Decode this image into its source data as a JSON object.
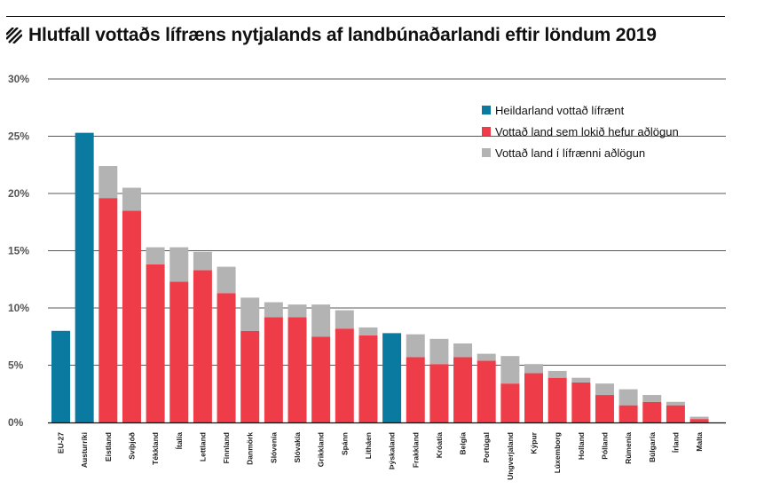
{
  "chart_data": {
    "type": "bar",
    "stacked": true,
    "title": "Hlutfall vottaðs lífræns nytjalands af landbúnaðarlandi eftir löndum 2019",
    "xlabel": "",
    "ylabel": "",
    "ylim": [
      0,
      30
    ],
    "yticks": [
      0,
      5,
      10,
      15,
      20,
      25,
      30
    ],
    "ytick_labels": [
      "0%",
      "5%",
      "10%",
      "15%",
      "20%",
      "25%",
      "30%"
    ],
    "grid": true,
    "legend_position": "top-right",
    "categories": [
      "EU-27",
      "Austurríki",
      "Eistland",
      "Svíþjóð",
      "Tékkland",
      "Ítalía",
      "Lettland",
      "Finnland",
      "Danmörk",
      "Slóvenía",
      "Slóvakía",
      "Grikkland",
      "Spánn",
      "Litháen",
      "Þýskaland",
      "Frakkland",
      "Króatía",
      "Belgía",
      "Portúgal",
      "Ungverjaland",
      "Kýpur",
      "Lúxemborg",
      "Holland",
      "Pólland",
      "Rúmenía",
      "Búlgaría",
      "Írland",
      "Malta"
    ],
    "series": [
      {
        "name": "Heildarland vottað lífrænt",
        "color": "#0a7aa0",
        "values": [
          8.0,
          25.3,
          0,
          0,
          0,
          0,
          0,
          0,
          0,
          0,
          0,
          0,
          0,
          0,
          7.8,
          0,
          0,
          0,
          0,
          0,
          0,
          0,
          0,
          0,
          0,
          0,
          0,
          0
        ]
      },
      {
        "name": "Vottað land sem lokið hefur aðlögun",
        "color": "#ee3d48",
        "values": [
          0,
          0,
          19.6,
          18.5,
          13.8,
          12.3,
          13.3,
          11.3,
          8.0,
          9.2,
          9.2,
          7.5,
          8.2,
          7.6,
          0,
          5.7,
          5.1,
          5.7,
          5.4,
          3.4,
          4.3,
          3.9,
          3.5,
          2.4,
          1.5,
          1.8,
          1.5,
          0.3
        ]
      },
      {
        "name": "Vottað land í lífrænni aðlögun",
        "color": "#b3b3b3",
        "values": [
          0,
          0,
          2.8,
          2.0,
          1.5,
          3.0,
          1.6,
          2.3,
          2.9,
          1.3,
          1.1,
          2.8,
          1.6,
          0.7,
          0,
          2.0,
          2.2,
          1.2,
          0.6,
          2.4,
          0.8,
          0.6,
          0.4,
          1.0,
          1.4,
          0.6,
          0.3,
          0.2
        ]
      }
    ]
  }
}
